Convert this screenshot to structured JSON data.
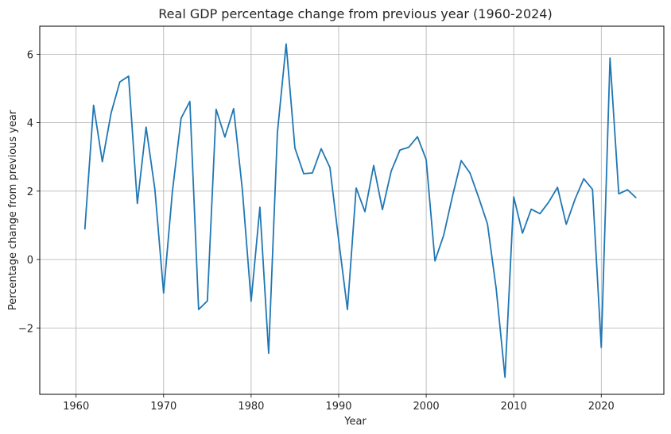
{
  "chart_data": {
    "type": "line",
    "title": "Real GDP percentage change from previous year (1960-2024)",
    "xlabel": "Year",
    "ylabel": "Percentage change from previous year",
    "xlim": [
      1955.85,
      2027.15
    ],
    "ylim": [
      -3.94,
      6.82
    ],
    "xticks": [
      1960,
      1970,
      1980,
      1990,
      2000,
      2010,
      2020
    ],
    "yticks": [
      -2,
      0,
      2,
      4,
      6
    ],
    "ytick_labels": [
      "−2",
      "0",
      "2",
      "4",
      "6"
    ],
    "grid": true,
    "line_color": "#1f77b4",
    "series": [
      {
        "x": [
          1961,
          1962,
          1963,
          1964,
          1965,
          1966,
          1967,
          1968,
          1969,
          1970,
          1971,
          1972,
          1973,
          1974,
          1975,
          1976,
          1977,
          1978,
          1979,
          1980,
          1981,
          1982,
          1983,
          1984,
          1985,
          1986,
          1987,
          1988,
          1989,
          1990,
          1991,
          1992,
          1993,
          1994,
          1995,
          1996,
          1997,
          1998,
          1999,
          2000,
          2001,
          2002,
          2003,
          2004,
          2005,
          2006,
          2007,
          2008,
          2009,
          2010,
          2011,
          2012,
          2013,
          2014,
          2015,
          2016,
          2017,
          2018,
          2019,
          2020,
          2021,
          2022,
          2023,
          2024
        ],
        "values": [
          0.88,
          4.51,
          2.86,
          4.28,
          5.19,
          5.36,
          1.64,
          3.87,
          2.06,
          -0.98,
          1.98,
          4.13,
          4.62,
          -1.46,
          -1.21,
          4.39,
          3.58,
          4.41,
          2.03,
          -1.22,
          1.53,
          -2.74,
          3.71,
          6.3,
          3.26,
          2.51,
          2.53,
          3.24,
          2.69,
          0.57,
          -1.46,
          2.09,
          1.4,
          2.75,
          1.46,
          2.58,
          3.2,
          3.28,
          3.59,
          2.92,
          -0.04,
          0.71,
          1.85,
          2.89,
          2.53,
          1.81,
          1.04,
          -0.86,
          -3.44,
          1.83,
          0.77,
          1.47,
          1.34,
          1.68,
          2.11,
          1.03,
          1.76,
          2.36,
          2.05,
          -2.57,
          5.89,
          1.92,
          2.04,
          1.8
        ]
      }
    ]
  }
}
